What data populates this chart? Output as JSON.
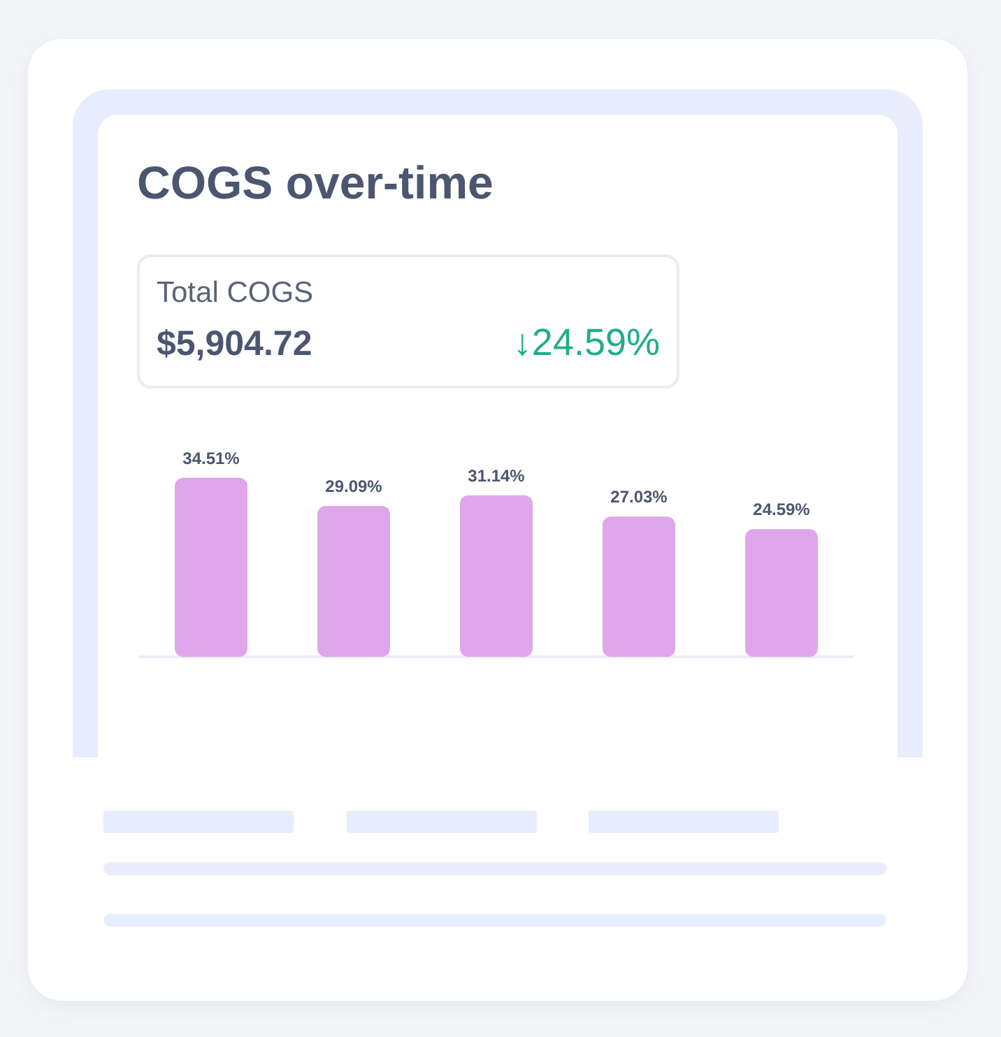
{
  "chart_data": {
    "type": "bar",
    "title": "COGS over-time",
    "annotations": [
      "Total COGS",
      "$5,904.72",
      "↓24.59%"
    ],
    "categories": [
      null,
      null,
      null,
      null,
      null
    ],
    "values": [
      34.51,
      29.09,
      31.14,
      27.03,
      24.59
    ],
    "color": "#dfa6ea",
    "data_labels": true,
    "value_labels": [
      "34.51%",
      "29.09%",
      "31.14%",
      "27.03%",
      "24.59%"
    ]
  }
}
